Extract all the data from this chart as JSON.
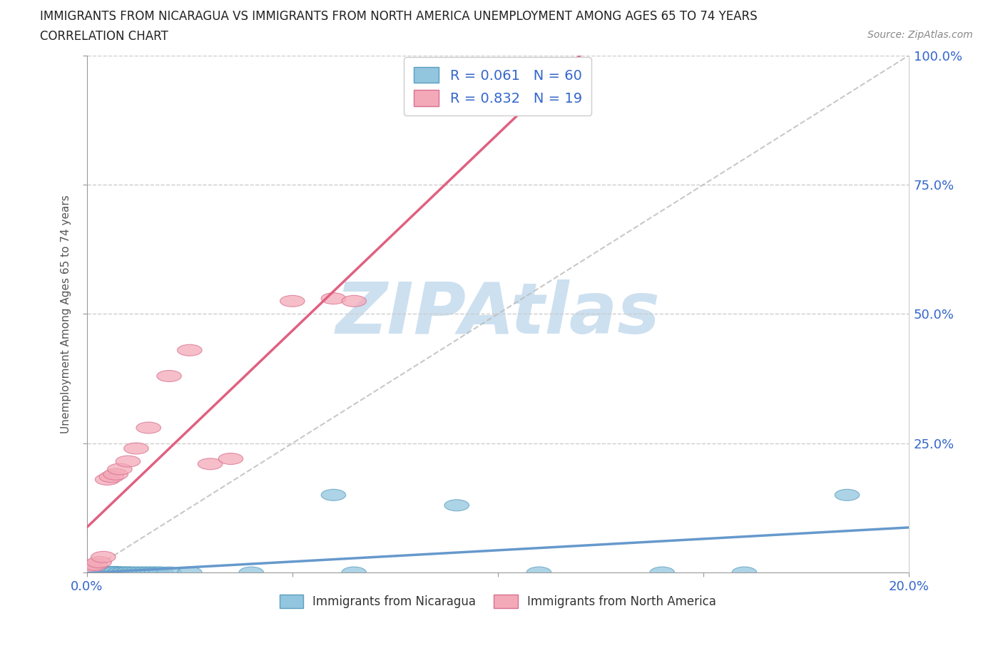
{
  "title_line1": "IMMIGRANTS FROM NICARAGUA VS IMMIGRANTS FROM NORTH AMERICA UNEMPLOYMENT AMONG AGES 65 TO 74 YEARS",
  "title_line2": "CORRELATION CHART",
  "source_text": "Source: ZipAtlas.com",
  "ylabel": "Unemployment Among Ages 65 to 74 years",
  "xlim": [
    0.0,
    0.2
  ],
  "ylim": [
    0.0,
    1.0
  ],
  "nicaragua_color": "#92c5de",
  "nicaragua_edge": "#5a9fc0",
  "north_america_color": "#f4a9b8",
  "north_america_edge": "#d87090",
  "nicaragua_label": "Immigrants from Nicaragua",
  "north_america_label": "Immigrants from North America",
  "R_nicaragua": 0.061,
  "N_nicaragua": 60,
  "R_north_america": 0.832,
  "N_north_america": 19,
  "legend_text_color": "#3366cc",
  "axis_label_color": "#3366cc",
  "background_color": "#ffffff",
  "watermark_text": "ZIPAtlas",
  "watermark_color": "#cce0f0",
  "grid_color": "#cccccc",
  "ref_line_color": "#bbbbbb",
  "nic_trend_color": "#6699cc",
  "na_trend_color": "#e06080",
  "nicaragua_x": [
    0.0,
    0.0,
    0.0,
    0.0,
    0.0,
    0.0,
    0.0,
    0.0,
    0.0,
    0.0,
    0.001,
    0.001,
    0.001,
    0.001,
    0.001,
    0.001,
    0.001,
    0.002,
    0.002,
    0.002,
    0.002,
    0.002,
    0.003,
    0.003,
    0.003,
    0.003,
    0.004,
    0.004,
    0.004,
    0.005,
    0.005,
    0.005,
    0.006,
    0.006,
    0.007,
    0.007,
    0.008,
    0.008,
    0.009,
    0.009,
    0.01,
    0.01,
    0.011,
    0.012,
    0.013,
    0.014,
    0.015,
    0.016,
    0.017,
    0.018,
    0.02,
    0.025,
    0.04,
    0.06,
    0.065,
    0.09,
    0.11,
    0.14,
    0.16,
    0.185
  ],
  "nicaragua_y": [
    0.0,
    0.0,
    0.0,
    0.0,
    0.0,
    0.0,
    0.0,
    0.001,
    0.001,
    0.002,
    0.0,
    0.0,
    0.0,
    0.0,
    0.001,
    0.001,
    0.002,
    0.0,
    0.0,
    0.0,
    0.001,
    0.001,
    0.0,
    0.0,
    0.001,
    0.001,
    0.0,
    0.0,
    0.001,
    0.0,
    0.0,
    0.001,
    0.0,
    0.001,
    0.0,
    0.001,
    0.0,
    0.0,
    0.0,
    0.0,
    0.0,
    0.0,
    0.0,
    0.0,
    0.0,
    0.0,
    0.0,
    0.0,
    0.0,
    0.0,
    0.0,
    0.0,
    0.0,
    0.15,
    0.0,
    0.13,
    0.0,
    0.0,
    0.0,
    0.15
  ],
  "north_america_x": [
    0.0,
    0.001,
    0.002,
    0.003,
    0.004,
    0.005,
    0.006,
    0.007,
    0.008,
    0.01,
    0.012,
    0.015,
    0.02,
    0.025,
    0.03,
    0.035,
    0.05,
    0.06,
    0.065
  ],
  "north_america_y": [
    0.0,
    0.01,
    0.015,
    0.02,
    0.03,
    0.18,
    0.185,
    0.19,
    0.2,
    0.215,
    0.24,
    0.28,
    0.38,
    0.43,
    0.21,
    0.22,
    0.525,
    0.53,
    0.525
  ]
}
